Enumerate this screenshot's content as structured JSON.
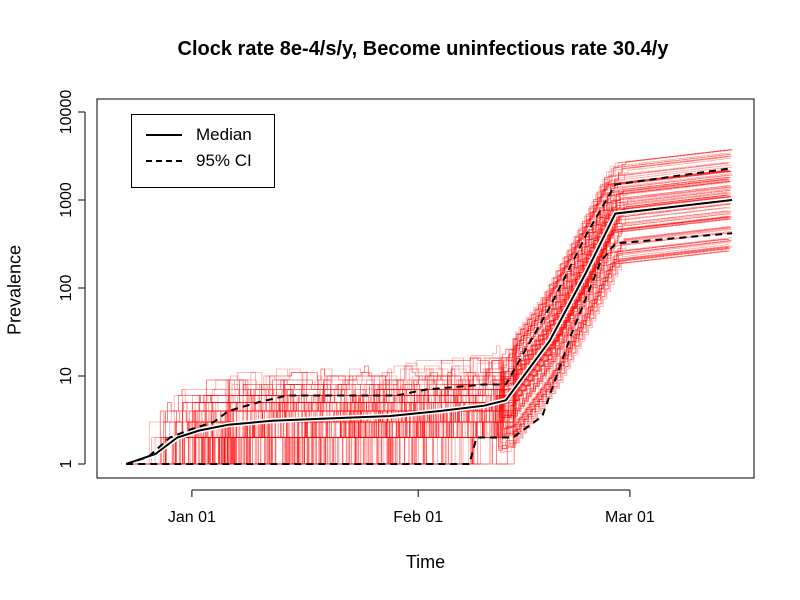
{
  "chart_data": {
    "type": "line",
    "title": "Clock rate 8e-4/s/y, Become uninfectious rate 30.4/y",
    "xlabel": "Time",
    "ylabel": "Prevalence",
    "y_scale": "log",
    "ylim": [
      1,
      10000
    ],
    "y_ticks": [
      1,
      10,
      100,
      1000,
      10000
    ],
    "xlim": [
      "2019-12-19",
      "2020-03-18"
    ],
    "x_ticks": [
      {
        "date": "2020-01-01",
        "label": "Jan 01"
      },
      {
        "date": "2020-02-01",
        "label": "Feb 01"
      },
      {
        "date": "2020-03-01",
        "label": "Mar 01"
      }
    ],
    "legend": {
      "position": "top-left",
      "entries": [
        {
          "label": "Median",
          "style": "solid"
        },
        {
          "label": "95% CI",
          "style": "dashed"
        }
      ]
    },
    "series": [
      {
        "name": "Median",
        "style": "solid",
        "points": [
          [
            "2019-12-23",
            1
          ],
          [
            "2019-12-27",
            1.3
          ],
          [
            "2019-12-30",
            2.0
          ],
          [
            "2020-01-02",
            2.4
          ],
          [
            "2020-01-06",
            2.8
          ],
          [
            "2020-01-12",
            3.1
          ],
          [
            "2020-01-20",
            3.3
          ],
          [
            "2020-01-28",
            3.5
          ],
          [
            "2020-02-04",
            4.0
          ],
          [
            "2020-02-10",
            4.6
          ],
          [
            "2020-02-13",
            5.3
          ],
          [
            "2020-02-19",
            25
          ],
          [
            "2020-02-24",
            150
          ],
          [
            "2020-02-28",
            700
          ],
          [
            "2020-03-05",
            800
          ],
          [
            "2020-03-15",
            1000
          ]
        ]
      },
      {
        "name": "95% CI",
        "style": "dashed",
        "points": [
          [
            "2019-12-23",
            1
          ],
          [
            "2019-12-26",
            1.2
          ],
          [
            "2019-12-29",
            2.0
          ],
          [
            "2020-01-01",
            2.5
          ],
          [
            "2020-01-04",
            3.0
          ],
          [
            "2020-01-06",
            4.0
          ],
          [
            "2020-01-10",
            5.0
          ],
          [
            "2020-01-14",
            6.0
          ],
          [
            "2020-01-29",
            6.0
          ],
          [
            "2020-02-02",
            7.0
          ],
          [
            "2020-02-10",
            8.0
          ],
          [
            "2020-02-13",
            8.0
          ],
          [
            "2020-02-19",
            60
          ],
          [
            "2020-02-24",
            400
          ],
          [
            "2020-02-28",
            1500
          ],
          [
            "2020-03-15",
            2300
          ]
        ]
      },
      {
        "name": "95% CI",
        "style": "dashed",
        "points": [
          [
            "2019-12-23",
            1
          ],
          [
            "2019-12-29",
            1
          ],
          [
            "2019-12-31",
            1
          ],
          [
            "2020-01-09",
            1
          ],
          [
            "2020-02-08",
            1
          ],
          [
            "2020-02-09",
            2.0
          ],
          [
            "2020-02-14",
            2.0
          ],
          [
            "2020-02-18",
            3.5
          ],
          [
            "2020-02-22",
            30
          ],
          [
            "2020-02-26",
            200
          ],
          [
            "2020-02-28",
            320
          ],
          [
            "2020-03-15",
            420
          ]
        ]
      }
    ],
    "trajectories": {
      "color": "#ff0000",
      "count": 120,
      "description_upper_max_y": 4500,
      "description_lower_min_y": 300
    }
  }
}
